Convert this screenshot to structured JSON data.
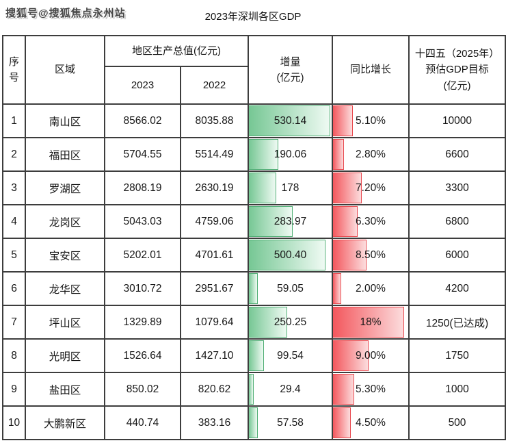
{
  "watermark": "搜狐号@搜狐焦点永州站",
  "title": "2023年深圳各区GDP",
  "table": {
    "headers": {
      "index": "序\n号",
      "region": "区域",
      "gdp_group": "地区生产总值(亿元)",
      "col_2023": "2023",
      "col_2022": "2022",
      "increment": "增量\n(亿元)",
      "yoy": "同比增长",
      "target": "十四五（2025年）\n预估GDP目标\n(亿元)"
    }
  },
  "colors": {
    "bar_green_left": "#76c794",
    "bar_green_right": "#effaf3",
    "bar_green_border": "#4fae74",
    "bar_red_left": "#f3575d",
    "bar_red_right": "#fcdcdd",
    "bar_red_border": "#e8494f",
    "grid_line": "#3d3d3d",
    "text": "#161616"
  },
  "chart_data": {
    "type": "table",
    "title": "2023年深圳各区GDP",
    "columns": [
      "序号",
      "区域",
      "地区生产总值(亿元) 2023",
      "地区生产总值(亿元) 2022",
      "增量(亿元)",
      "同比增长",
      "十四五（2025年）预估GDP目标(亿元)"
    ],
    "increment_bar_max": 539.2,
    "yoy_bar_max": 19.05,
    "rows": [
      {
        "index": "1",
        "region": "南山区",
        "gdp_2023": "8566.02",
        "gdp_2022": "8035.88",
        "increment": "530.14",
        "increment_value": 530.14,
        "yoy": "5.10%",
        "yoy_value": 5.1,
        "target": "10000"
      },
      {
        "index": "2",
        "region": "福田区",
        "gdp_2023": "5704.55",
        "gdp_2022": "5514.49",
        "increment": "190.06",
        "increment_value": 190.06,
        "yoy": "2.80%",
        "yoy_value": 2.8,
        "target": "6600"
      },
      {
        "index": "3",
        "region": "罗湖区",
        "gdp_2023": "2808.19",
        "gdp_2022": "2630.19",
        "increment": "178",
        "increment_value": 178.0,
        "yoy": "7.20%",
        "yoy_value": 7.2,
        "target": "3300"
      },
      {
        "index": "4",
        "region": "龙岗区",
        "gdp_2023": "5043.03",
        "gdp_2022": "4759.06",
        "increment": "283.97",
        "increment_value": 283.97,
        "yoy": "6.30%",
        "yoy_value": 6.3,
        "target": "6800"
      },
      {
        "index": "5",
        "region": "宝安区",
        "gdp_2023": "5202.01",
        "gdp_2022": "4701.61",
        "increment": "500.40",
        "increment_value": 500.4,
        "yoy": "8.50%",
        "yoy_value": 8.5,
        "target": "6000"
      },
      {
        "index": "6",
        "region": "龙华区",
        "gdp_2023": "3010.72",
        "gdp_2022": "2951.67",
        "increment": "59.05",
        "increment_value": 59.05,
        "yoy": "2.00%",
        "yoy_value": 2.0,
        "target": "4200"
      },
      {
        "index": "7",
        "region": "坪山区",
        "gdp_2023": "1329.89",
        "gdp_2022": "1079.64",
        "increment": "250.25",
        "increment_value": 250.25,
        "yoy": "18%",
        "yoy_value": 18.0,
        "target": "1250(已达成)"
      },
      {
        "index": "8",
        "region": "光明区",
        "gdp_2023": "1526.64",
        "gdp_2022": "1427.10",
        "increment": "99.54",
        "increment_value": 99.54,
        "yoy": "9.00%",
        "yoy_value": 9.0,
        "target": "1750"
      },
      {
        "index": "9",
        "region": "盐田区",
        "gdp_2023": "850.02",
        "gdp_2022": "820.62",
        "increment": "29.4",
        "increment_value": 29.4,
        "yoy": "5.30%",
        "yoy_value": 5.3,
        "target": "1000"
      },
      {
        "index": "10",
        "region": "大鹏新区",
        "gdp_2023": "440.74",
        "gdp_2022": "383.16",
        "increment": "57.58",
        "increment_value": 57.58,
        "yoy": "4.50%",
        "yoy_value": 4.5,
        "target": "500"
      }
    ]
  }
}
